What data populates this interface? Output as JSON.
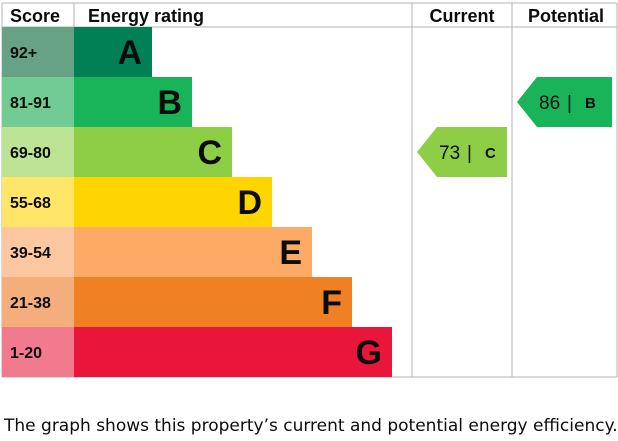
{
  "chart_data": {
    "type": "bar",
    "headers": {
      "score": "Score",
      "rating": "Energy rating",
      "current": "Current",
      "potential": "Potential"
    },
    "bands": [
      {
        "letter": "A",
        "range": "92+",
        "color": "#008054",
        "score_color": "#67a287"
      },
      {
        "letter": "B",
        "range": "81-91",
        "color": "#19b459",
        "score_color": "#70cc92"
      },
      {
        "letter": "C",
        "range": "69-80",
        "color": "#8dce46",
        "score_color": "#bde394"
      },
      {
        "letter": "D",
        "range": "55-68",
        "color": "#ffd500",
        "score_color": "#ffe568"
      },
      {
        "letter": "E",
        "range": "39-54",
        "color": "#fcaa65",
        "score_color": "#fdc8a0"
      },
      {
        "letter": "F",
        "range": "21-38",
        "color": "#ef8023",
        "score_color": "#f4ae7c"
      },
      {
        "letter": "G",
        "range": "1-20",
        "color": "#e9153b",
        "score_color": "#f27a8e"
      }
    ],
    "current": {
      "value": "73",
      "band": "C",
      "color": "#8dce46"
    },
    "potential": {
      "value": "86",
      "band": "B",
      "color": "#19b459"
    }
  },
  "caption": "The graph shows this property’s current and potential energy efficiency."
}
